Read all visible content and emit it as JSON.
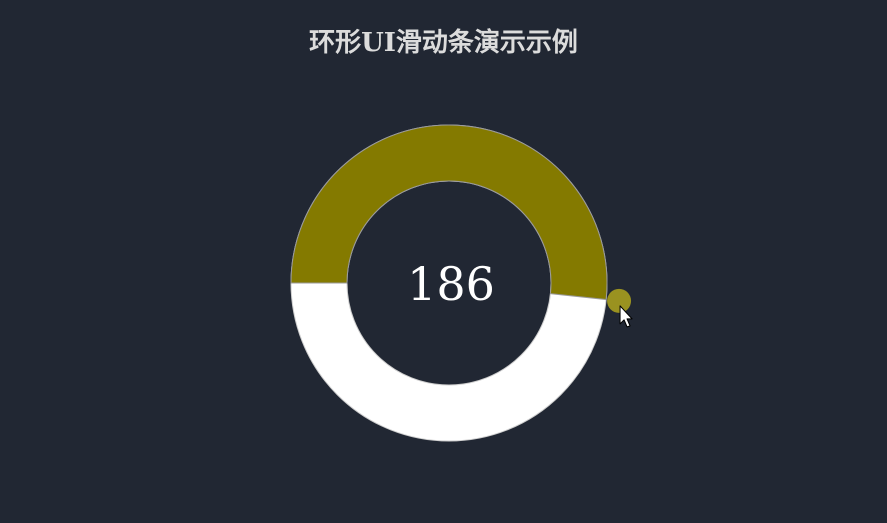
{
  "title": "环形UI滑动条演示示例",
  "slider": {
    "value": "186",
    "value_degrees": 186,
    "track_color": "#ffffff",
    "fill_color": "#847a00",
    "handle_color": "#9a9220",
    "background_color": "#212733"
  },
  "icons": {
    "cursor": "mouse-pointer-icon"
  }
}
